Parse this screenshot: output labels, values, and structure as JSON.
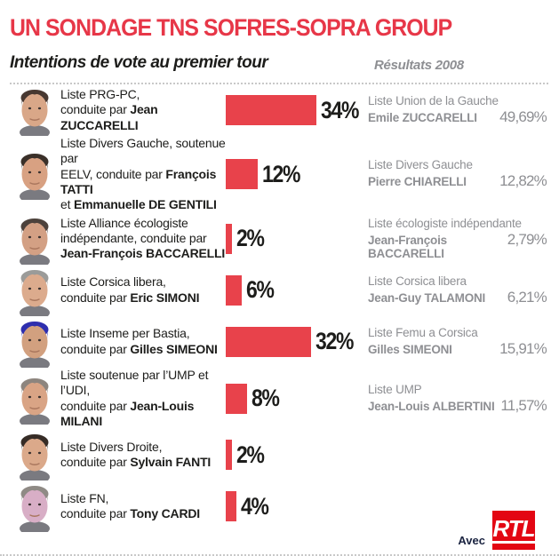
{
  "header": {
    "title": "UN SONDAGE TNS SOFRES-SOPRA GROUP",
    "left_subtitle": "Intentions de vote au premier tour",
    "right_subtitle": "Résultats 2008"
  },
  "colors": {
    "accent_red": "#e8424b",
    "title_red": "#e73748",
    "rtl_red": "#e30613",
    "gray_text": "#8e8f93",
    "dark_text": "#1d1d1b"
  },
  "footer": {
    "avec_label": "Avec",
    "rtl_label": "RTL"
  },
  "chart_data": {
    "type": "bar",
    "title": "UN SONDAGE TNS SOFRES-SOPRA GROUP",
    "subtitle": "Intentions de vote au premier tour",
    "comparison_label": "Résultats 2008",
    "unit": "%",
    "categories": [
      "Liste PRG-PC — Jean ZUCCARELLI",
      "Liste Divers Gauche (EELV) — François TATTI et Emmanuelle DE GENTILI",
      "Liste Alliance écologiste indépendante — Jean-François BACCARELLI",
      "Liste Corsica libera — Eric SIMONI",
      "Liste Inseme per Bastia — Gilles SIMEONI",
      "Liste UMP-UDI — Jean-Louis MILANI",
      "Liste Divers Droite — Sylvain FANTI",
      "Liste FN — Tony CARDI"
    ],
    "values": [
      34,
      12,
      2,
      6,
      32,
      8,
      2,
      4
    ],
    "results_2008": [
      {
        "list": "Liste Union de la Gauche",
        "name": "Emile ZUCCARELLI",
        "value": 49.69
      },
      {
        "list": "Liste Divers Gauche",
        "name": "Pierre CHIARELLI",
        "value": 12.82
      },
      {
        "list": "Liste écologiste indépendante",
        "name": "Jean-François BACCARELLI",
        "value": 2.79
      },
      {
        "list": "Liste Corsica libera",
        "name": "Jean-Guy TALAMONI",
        "value": 6.21
      },
      {
        "list": "Liste Femu a Corsica",
        "name": "Gilles SIMEONI",
        "value": 15.91
      },
      {
        "list": "Liste UMP",
        "name": "Jean-Louis ALBERTINI",
        "value": 11.57
      },
      null,
      null
    ],
    "xlim": [
      0,
      40
    ],
    "legend": false,
    "grid": false
  },
  "rows": [
    {
      "pct": 34,
      "pct_label": "34%",
      "lines": [
        [
          {
            "t": "Liste PRG-PC,",
            "b": false
          }
        ],
        [
          {
            "t": "conduite par ",
            "b": false
          },
          {
            "t": "Jean ZUCCARELLI",
            "b": true
          }
        ]
      ],
      "result": {
        "list": "Liste Union de la Gauche",
        "name": "Emile ZUCCARELLI",
        "value": "49,69%"
      },
      "avatar": {
        "hair": "#473831",
        "skin": "#d9a788"
      }
    },
    {
      "pct": 12,
      "pct_label": "12%",
      "lines": [
        [
          {
            "t": "Liste Divers Gauche, soutenue par",
            "b": false
          }
        ],
        [
          {
            "t": "EELV, conduite par ",
            "b": false
          },
          {
            "t": "François TATTI",
            "b": true
          }
        ],
        [
          {
            "t": "et ",
            "b": false
          },
          {
            "t": "Emmanuelle DE GENTILI",
            "b": true
          }
        ]
      ],
      "result": {
        "list": "Liste Divers Gauche",
        "name": "Pierre CHIARELLI",
        "value": "12,82%"
      },
      "avatar": {
        "hair": "#3a3029",
        "skin": "#d8a182"
      }
    },
    {
      "pct": 2,
      "pct_label": "2%",
      "lines": [
        [
          {
            "t": "Liste Alliance écologiste",
            "b": false
          }
        ],
        [
          {
            "t": "indépendante, conduite par",
            "b": false
          }
        ],
        [
          {
            "t": "Jean-François BACCARELLI",
            "b": true
          }
        ]
      ],
      "result": {
        "list": "Liste écologiste indépendante",
        "name": "Jean-François BACCARELLI",
        "value": "2,79%"
      },
      "avatar": {
        "hair": "#4d423c",
        "skin": "#d3a084"
      }
    },
    {
      "pct": 6,
      "pct_label": "6%",
      "lines": [
        [
          {
            "t": "Liste Corsica libera,",
            "b": false
          }
        ],
        [
          {
            "t": "conduite par ",
            "b": false
          },
          {
            "t": "Eric SIMONI",
            "b": true
          }
        ]
      ],
      "result": {
        "list": "Liste Corsica libera",
        "name": "Jean-Guy TALAMONI",
        "value": "6,21%"
      },
      "avatar": {
        "hair": "#9b9b99",
        "skin": "#dcab8d"
      }
    },
    {
      "pct": 32,
      "pct_label": "32%",
      "lines": [
        [
          {
            "t": "Liste Inseme per Bastia,",
            "b": false
          }
        ],
        [
          {
            "t": "conduite par ",
            "b": false
          },
          {
            "t": "Gilles SIMEONI",
            "b": true
          }
        ]
      ],
      "result": {
        "list": "Liste Femu a Corsica",
        "name": "Gilles SIMEONI",
        "value": "15,91%"
      },
      "avatar": {
        "hair": "#2e2username2620",
        "skin": "#d2a07f"
      }
    },
    {
      "pct": 8,
      "pct_label": "8%",
      "lines": [
        [
          {
            "t": "Liste soutenue par l’UMP et l’UDI,",
            "b": false
          }
        ],
        [
          {
            "t": "conduite par ",
            "b": false
          },
          {
            "t": "Jean-Louis MILANI",
            "b": true
          }
        ]
      ],
      "result": {
        "list": "Liste UMP",
        "name": "Jean-Louis ALBERTINI",
        "value": "11,57%"
      },
      "avatar": {
        "hair": "#8d857e",
        "skin": "#d9a485"
      }
    },
    {
      "pct": 2,
      "pct_label": "2%",
      "lines": [
        [
          {
            "t": "Liste Divers Droite,",
            "b": false
          }
        ],
        [
          {
            "t": "conduite par ",
            "b": false
          },
          {
            "t": "Sylvain FANTI",
            "b": true
          }
        ]
      ],
      "result": null,
      "avatar": {
        "hair": "#362c26",
        "skin": "#dba98a"
      }
    },
    {
      "pct": 4,
      "pct_label": "4%",
      "lines": [
        [
          {
            "t": "Liste FN,",
            "b": false
          }
        ],
        [
          {
            "t": "conduite par ",
            "b": false
          },
          {
            "t": "Tony CARDI",
            "b": true
          }
        ]
      ],
      "result": null,
      "avatar": {
        "hair": "#8f8a85",
        "skin": "#d8a econom68a"
      }
    }
  ]
}
